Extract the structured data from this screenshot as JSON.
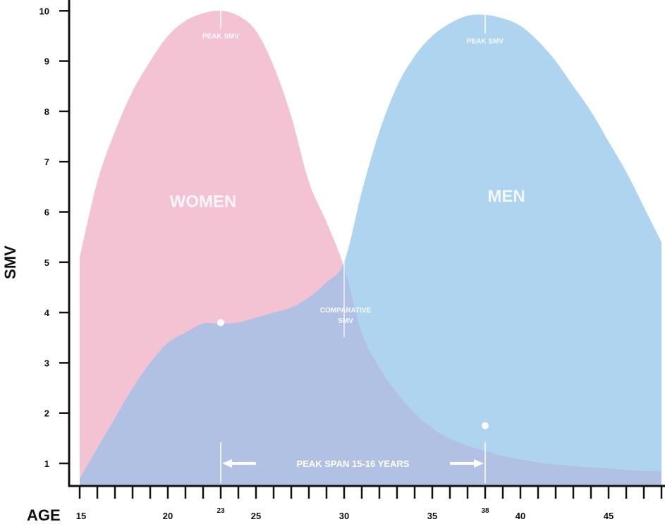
{
  "chart_data": {
    "type": "area",
    "xlabel": "AGE",
    "ylabel": "SMV",
    "xlim": [
      15,
      48
    ],
    "ylim": [
      0.5,
      10.2
    ],
    "yticks": [
      1,
      2,
      3,
      4,
      5,
      6,
      7,
      8,
      9,
      10
    ],
    "xticks_labeled": [
      15,
      20,
      23,
      25,
      30,
      35,
      38,
      40,
      45
    ],
    "xtick_small_labels": [
      23,
      38
    ],
    "series": [
      {
        "name": "WOMEN",
        "color": "#f4c3d3",
        "x": [
          15,
          16,
          17,
          18,
          19,
          20,
          21,
          22,
          23,
          24,
          25,
          26,
          27,
          28,
          29,
          30,
          31,
          32,
          33,
          34,
          35,
          36,
          37,
          38,
          39,
          40,
          41,
          42,
          43,
          44,
          45,
          46,
          47,
          48
        ],
        "values": [
          5.1,
          6.6,
          7.6,
          8.4,
          9.0,
          9.5,
          9.8,
          9.95,
          10.0,
          9.9,
          9.6,
          8.9,
          7.9,
          6.6,
          5.8,
          4.9,
          3.6,
          2.9,
          2.4,
          2.0,
          1.7,
          1.5,
          1.35,
          1.25,
          1.15,
          1.08,
          1.02,
          0.98,
          0.95,
          0.92,
          0.9,
          0.87,
          0.85,
          0.84
        ]
      },
      {
        "name": "MEN",
        "color": "#aed4ef",
        "x": [
          15,
          16,
          17,
          18,
          19,
          20,
          21,
          22,
          23,
          24,
          25,
          26,
          27,
          28,
          29,
          30,
          31,
          32,
          33,
          34,
          35,
          36,
          37,
          38,
          39,
          40,
          41,
          42,
          43,
          44,
          45,
          46,
          47,
          48
        ],
        "values": [
          0.7,
          1.3,
          1.9,
          2.5,
          3.0,
          3.4,
          3.6,
          3.78,
          3.78,
          3.8,
          3.9,
          4.0,
          4.1,
          4.3,
          4.6,
          5.0,
          6.4,
          7.6,
          8.5,
          9.1,
          9.5,
          9.75,
          9.9,
          9.92,
          9.85,
          9.7,
          9.4,
          9.0,
          8.5,
          8.0,
          7.4,
          6.8,
          6.1,
          5.4
        ]
      }
    ],
    "overlap_color": "#b1c1e3",
    "annotations": [
      {
        "text": "PEAK SMV",
        "x": 23,
        "y": 9.45
      },
      {
        "text": "PEAK SMV",
        "x": 38,
        "y": 9.35
      },
      {
        "text_lines": [
          "COMPARATIVE",
          "SMV"
        ],
        "x": 30,
        "y": 4.0
      },
      {
        "text": "PEAK SPAN 15-16 YEARS",
        "x_from": 23,
        "x_to": 38,
        "y": 1.0
      }
    ],
    "marked_points": [
      {
        "x": 23,
        "y": 3.8
      },
      {
        "x": 38,
        "y": 1.75
      }
    ],
    "series_labels": [
      {
        "text": "WOMEN",
        "x": 22,
        "y": 6.1
      },
      {
        "text": "MEN",
        "x": 39.2,
        "y": 6.2
      }
    ],
    "grid": false,
    "legend": "none"
  }
}
